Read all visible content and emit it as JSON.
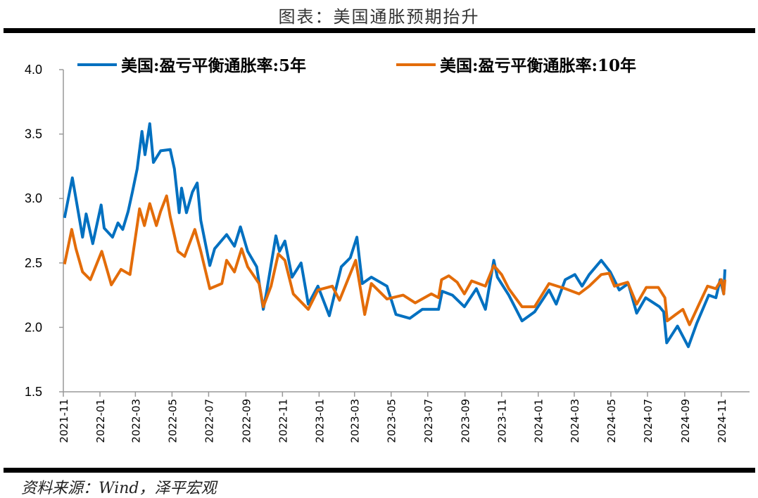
{
  "title": "图表：美国通胀预期抬升",
  "source": "资料来源：Wind，泽平宏观",
  "chart_data": {
    "type": "line",
    "title": "图表：美国通胀预期抬升",
    "xlabel": "",
    "ylabel": "",
    "ylim": [
      1.5,
      4.0
    ],
    "yticks": [
      "1.5",
      "2.0",
      "2.5",
      "3.0",
      "3.5",
      "4.0"
    ],
    "xlim": [
      "2021-11-01",
      "2024-12-18"
    ],
    "xticks": [
      "2021-11",
      "2022-01",
      "2022-03",
      "2022-05",
      "2022-07",
      "2022-09",
      "2022-11",
      "2023-01",
      "2023-03",
      "2023-05",
      "2023-07",
      "2023-09",
      "2023-11",
      "2024-01",
      "2024-03",
      "2024-05",
      "2024-07",
      "2024-09",
      "2024-11"
    ],
    "grid": false,
    "legend_position": "top",
    "series": [
      {
        "name": "美国:盈亏平衡通胀率:5年",
        "color": "#0070C0",
        "points": [
          [
            "2021-11-03",
            2.85
          ],
          [
            "2021-11-16",
            3.16
          ],
          [
            "2021-11-22",
            3.0
          ],
          [
            "2021-12-03",
            2.7
          ],
          [
            "2021-12-09",
            2.88
          ],
          [
            "2021-12-20",
            2.65
          ],
          [
            "2022-01-03",
            2.95
          ],
          [
            "2022-01-08",
            2.77
          ],
          [
            "2022-01-22",
            2.7
          ],
          [
            "2022-01-31",
            2.81
          ],
          [
            "2022-02-08",
            2.76
          ],
          [
            "2022-02-17",
            2.9
          ],
          [
            "2022-02-24",
            3.05
          ],
          [
            "2022-03-04",
            3.23
          ],
          [
            "2022-03-12",
            3.52
          ],
          [
            "2022-03-17",
            3.34
          ],
          [
            "2022-03-25",
            3.58
          ],
          [
            "2022-03-31",
            3.28
          ],
          [
            "2022-04-12",
            3.37
          ],
          [
            "2022-04-28",
            3.38
          ],
          [
            "2022-05-05",
            3.23
          ],
          [
            "2022-05-13",
            2.89
          ],
          [
            "2022-05-17",
            3.08
          ],
          [
            "2022-05-25",
            2.89
          ],
          [
            "2022-06-04",
            3.05
          ],
          [
            "2022-06-12",
            3.12
          ],
          [
            "2022-06-18",
            2.83
          ],
          [
            "2022-07-03",
            2.48
          ],
          [
            "2022-07-11",
            2.61
          ],
          [
            "2022-07-31",
            2.72
          ],
          [
            "2022-08-13",
            2.63
          ],
          [
            "2022-08-23",
            2.78
          ],
          [
            "2022-09-04",
            2.59
          ],
          [
            "2022-09-19",
            2.47
          ],
          [
            "2022-09-30",
            2.14
          ],
          [
            "2022-10-05",
            2.26
          ],
          [
            "2022-10-21",
            2.71
          ],
          [
            "2022-10-27",
            2.59
          ],
          [
            "2022-11-05",
            2.67
          ],
          [
            "2022-11-17",
            2.39
          ],
          [
            "2022-12-02",
            2.5
          ],
          [
            "2022-12-14",
            2.18
          ],
          [
            "2022-12-30",
            2.32
          ],
          [
            "2023-01-18",
            2.09
          ],
          [
            "2023-02-07",
            2.47
          ],
          [
            "2023-02-22",
            2.54
          ],
          [
            "2023-03-05",
            2.7
          ],
          [
            "2023-03-14",
            2.34
          ],
          [
            "2023-03-29",
            2.39
          ],
          [
            "2023-04-24",
            2.32
          ],
          [
            "2023-05-09",
            2.1
          ],
          [
            "2023-06-01",
            2.07
          ],
          [
            "2023-06-22",
            2.14
          ],
          [
            "2023-07-19",
            2.14
          ],
          [
            "2023-07-25",
            2.28
          ],
          [
            "2023-08-11",
            2.25
          ],
          [
            "2023-08-31",
            2.16
          ],
          [
            "2023-09-20",
            2.3
          ],
          [
            "2023-10-05",
            2.14
          ],
          [
            "2023-10-19",
            2.52
          ],
          [
            "2023-10-25",
            2.39
          ],
          [
            "2023-11-13",
            2.25
          ],
          [
            "2023-12-05",
            2.05
          ],
          [
            "2023-12-26",
            2.12
          ],
          [
            "2024-01-19",
            2.29
          ],
          [
            "2024-01-31",
            2.18
          ],
          [
            "2024-02-15",
            2.37
          ],
          [
            "2024-03-02",
            2.41
          ],
          [
            "2024-03-14",
            2.32
          ],
          [
            "2024-03-26",
            2.41
          ],
          [
            "2024-04-15",
            2.52
          ],
          [
            "2024-04-30",
            2.43
          ],
          [
            "2024-05-15",
            2.29
          ],
          [
            "2024-05-30",
            2.34
          ],
          [
            "2024-06-13",
            2.11
          ],
          [
            "2024-06-28",
            2.23
          ],
          [
            "2024-07-21",
            2.16
          ],
          [
            "2024-07-28",
            2.12
          ],
          [
            "2024-08-02",
            1.88
          ],
          [
            "2024-08-20",
            2.01
          ],
          [
            "2024-09-07",
            1.85
          ],
          [
            "2024-09-21",
            2.03
          ],
          [
            "2024-10-11",
            2.25
          ],
          [
            "2024-10-23",
            2.23
          ],
          [
            "2024-10-30",
            2.37
          ],
          [
            "2024-11-05",
            2.26
          ],
          [
            "2024-11-07",
            2.45
          ]
        ]
      },
      {
        "name": "美国:盈亏平衡通胀率:10年",
        "color": "#E36C09",
        "points": [
          [
            "2021-11-03",
            2.49
          ],
          [
            "2021-11-15",
            2.76
          ],
          [
            "2021-11-22",
            2.61
          ],
          [
            "2021-12-03",
            2.43
          ],
          [
            "2021-12-16",
            2.37
          ],
          [
            "2022-01-04",
            2.59
          ],
          [
            "2022-01-20",
            2.33
          ],
          [
            "2022-02-05",
            2.45
          ],
          [
            "2022-02-20",
            2.41
          ],
          [
            "2022-03-08",
            2.92
          ],
          [
            "2022-03-16",
            2.79
          ],
          [
            "2022-03-25",
            2.96
          ],
          [
            "2022-04-05",
            2.79
          ],
          [
            "2022-04-12",
            2.9
          ],
          [
            "2022-04-22",
            3.02
          ],
          [
            "2022-04-28",
            2.86
          ],
          [
            "2022-05-11",
            2.59
          ],
          [
            "2022-05-22",
            2.55
          ],
          [
            "2022-06-08",
            2.76
          ],
          [
            "2022-06-18",
            2.59
          ],
          [
            "2022-07-03",
            2.3
          ],
          [
            "2022-07-23",
            2.34
          ],
          [
            "2022-07-31",
            2.52
          ],
          [
            "2022-08-13",
            2.43
          ],
          [
            "2022-08-25",
            2.61
          ],
          [
            "2022-09-04",
            2.47
          ],
          [
            "2022-09-23",
            2.34
          ],
          [
            "2022-09-30",
            2.16
          ],
          [
            "2022-10-13",
            2.32
          ],
          [
            "2022-10-25",
            2.57
          ],
          [
            "2022-11-05",
            2.52
          ],
          [
            "2022-11-19",
            2.26
          ],
          [
            "2022-12-14",
            2.14
          ],
          [
            "2022-12-30",
            2.29
          ],
          [
            "2023-01-23",
            2.32
          ],
          [
            "2023-02-04",
            2.21
          ],
          [
            "2023-03-03",
            2.52
          ],
          [
            "2023-03-18",
            2.1
          ],
          [
            "2023-03-29",
            2.34
          ],
          [
            "2023-04-24",
            2.22
          ],
          [
            "2023-05-21",
            2.25
          ],
          [
            "2023-06-10",
            2.19
          ],
          [
            "2023-07-07",
            2.26
          ],
          [
            "2023-07-19",
            2.23
          ],
          [
            "2023-07-24",
            2.37
          ],
          [
            "2023-08-05",
            2.4
          ],
          [
            "2023-08-19",
            2.35
          ],
          [
            "2023-08-31",
            2.26
          ],
          [
            "2023-09-12",
            2.36
          ],
          [
            "2023-10-05",
            2.32
          ],
          [
            "2023-10-19",
            2.48
          ],
          [
            "2023-11-01",
            2.41
          ],
          [
            "2023-11-13",
            2.3
          ],
          [
            "2023-12-05",
            2.16
          ],
          [
            "2023-12-26",
            2.16
          ],
          [
            "2024-01-19",
            2.34
          ],
          [
            "2024-02-15",
            2.3
          ],
          [
            "2024-03-09",
            2.26
          ],
          [
            "2024-03-26",
            2.32
          ],
          [
            "2024-04-15",
            2.41
          ],
          [
            "2024-04-28",
            2.42
          ],
          [
            "2024-05-07",
            2.32
          ],
          [
            "2024-05-29",
            2.35
          ],
          [
            "2024-06-13",
            2.18
          ],
          [
            "2024-06-29",
            2.31
          ],
          [
            "2024-07-19",
            2.31
          ],
          [
            "2024-07-30",
            2.23
          ],
          [
            "2024-08-03",
            2.05
          ],
          [
            "2024-08-17",
            2.1
          ],
          [
            "2024-08-29",
            2.14
          ],
          [
            "2024-09-09",
            2.02
          ],
          [
            "2024-09-25",
            2.18
          ],
          [
            "2024-10-09",
            2.32
          ],
          [
            "2024-10-23",
            2.3
          ],
          [
            "2024-11-01",
            2.37
          ],
          [
            "2024-11-05",
            2.26
          ],
          [
            "2024-11-07",
            2.37
          ]
        ]
      }
    ]
  }
}
